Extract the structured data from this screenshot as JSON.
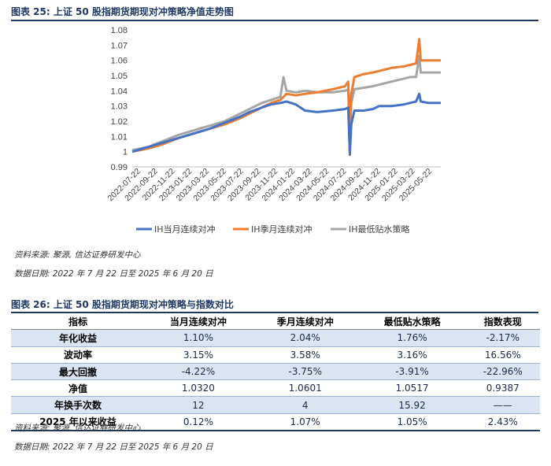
{
  "figure1": {
    "title": "图表 25:  上证 50 股指期货期现对冲策略净值走势图",
    "source": "资料来源:  聚源,  信达证券研发中心",
    "date": "数据日期:  2022 年 7 月 22 日至 2025 年 6 月 20 日"
  },
  "chart_data": {
    "type": "line",
    "x_ticks": [
      "2022-07-22",
      "2022-09-22",
      "2022-11-22",
      "2023-01-22",
      "2023-03-22",
      "2023-05-22",
      "2023-07-22",
      "2023-09-22",
      "2023-11-22",
      "2024-01-22",
      "2024-03-22",
      "2024-05-22",
      "2024-07-22",
      "2024-09-22",
      "2024-11-22",
      "2025-01-22",
      "2025-03-22",
      "2025-05-22"
    ],
    "ylim": [
      0.99,
      1.08
    ],
    "yticks": [
      "0.99",
      "1",
      "1.01",
      "1.02",
      "1.03",
      "1.04",
      "1.05",
      "1.06",
      "1.07",
      "1.08"
    ],
    "legend_position": "bottom",
    "grid": false,
    "series": [
      {
        "name": "IH当月连续对冲",
        "color": "#4472c4",
        "points": [
          [
            0,
            1.0
          ],
          [
            0.05,
            1.003
          ],
          [
            0.1,
            1.006
          ],
          [
            0.15,
            1.009
          ],
          [
            0.2,
            1.012
          ],
          [
            0.25,
            1.015
          ],
          [
            0.3,
            1.019
          ],
          [
            0.35,
            1.023
          ],
          [
            0.38,
            1.026
          ],
          [
            0.42,
            1.029
          ],
          [
            0.45,
            1.031
          ],
          [
            0.48,
            1.032
          ],
          [
            0.5,
            1.033
          ],
          [
            0.53,
            1.031
          ],
          [
            0.56,
            1.027
          ],
          [
            0.6,
            1.026
          ],
          [
            0.65,
            1.027
          ],
          [
            0.69,
            1.028
          ],
          [
            0.7,
            1.029
          ],
          [
            0.705,
            0.998
          ],
          [
            0.71,
            1.018
          ],
          [
            0.72,
            1.027
          ],
          [
            0.75,
            1.027
          ],
          [
            0.78,
            1.028
          ],
          [
            0.8,
            1.03
          ],
          [
            0.84,
            1.03
          ],
          [
            0.88,
            1.031
          ],
          [
            0.9,
            1.032
          ],
          [
            0.92,
            1.033
          ],
          [
            0.93,
            1.038
          ],
          [
            0.935,
            1.033
          ],
          [
            0.96,
            1.032
          ],
          [
            1.0,
            1.032
          ]
        ]
      },
      {
        "name": "IH季月连续对冲",
        "color": "#ed7d31",
        "points": [
          [
            0,
            1.0
          ],
          [
            0.05,
            1.002
          ],
          [
            0.1,
            1.005
          ],
          [
            0.15,
            1.009
          ],
          [
            0.2,
            1.012
          ],
          [
            0.25,
            1.015
          ],
          [
            0.3,
            1.018
          ],
          [
            0.35,
            1.022
          ],
          [
            0.38,
            1.025
          ],
          [
            0.42,
            1.029
          ],
          [
            0.45,
            1.032
          ],
          [
            0.48,
            1.034
          ],
          [
            0.5,
            1.038
          ],
          [
            0.53,
            1.037
          ],
          [
            0.56,
            1.038
          ],
          [
            0.6,
            1.039
          ],
          [
            0.65,
            1.041
          ],
          [
            0.69,
            1.043
          ],
          [
            0.7,
            1.046
          ],
          [
            0.705,
            1.017
          ],
          [
            0.71,
            1.038
          ],
          [
            0.72,
            1.049
          ],
          [
            0.75,
            1.051
          ],
          [
            0.78,
            1.052
          ],
          [
            0.8,
            1.053
          ],
          [
            0.84,
            1.055
          ],
          [
            0.88,
            1.056
          ],
          [
            0.9,
            1.057
          ],
          [
            0.92,
            1.058
          ],
          [
            0.93,
            1.074
          ],
          [
            0.935,
            1.06
          ],
          [
            0.96,
            1.06
          ],
          [
            1.0,
            1.06
          ]
        ]
      },
      {
        "name": "IH最低贴水策略",
        "color": "#a5a5a5",
        "points": [
          [
            0,
            1.001
          ],
          [
            0.05,
            1.003
          ],
          [
            0.1,
            1.007
          ],
          [
            0.15,
            1.011
          ],
          [
            0.2,
            1.014
          ],
          [
            0.25,
            1.017
          ],
          [
            0.3,
            1.02
          ],
          [
            0.35,
            1.025
          ],
          [
            0.38,
            1.028
          ],
          [
            0.42,
            1.032
          ],
          [
            0.45,
            1.034
          ],
          [
            0.48,
            1.036
          ],
          [
            0.49,
            1.049
          ],
          [
            0.5,
            1.04
          ],
          [
            0.53,
            1.039
          ],
          [
            0.56,
            1.04
          ],
          [
            0.6,
            1.039
          ],
          [
            0.65,
            1.039
          ],
          [
            0.69,
            1.04
          ],
          [
            0.7,
            1.041
          ],
          [
            0.705,
            1.008
          ],
          [
            0.71,
            1.032
          ],
          [
            0.72,
            1.041
          ],
          [
            0.75,
            1.042
          ],
          [
            0.78,
            1.043
          ],
          [
            0.8,
            1.044
          ],
          [
            0.84,
            1.046
          ],
          [
            0.88,
            1.048
          ],
          [
            0.9,
            1.049
          ],
          [
            0.92,
            1.049
          ],
          [
            0.93,
            1.063
          ],
          [
            0.935,
            1.052
          ],
          [
            0.96,
            1.052
          ],
          [
            1.0,
            1.052
          ]
        ]
      }
    ]
  },
  "figure2": {
    "title": "图表 26:  上证 50 股指期货期现对冲策略与指数对比",
    "headers": [
      "指标",
      "当月连续对冲",
      "季月连续对冲",
      "最低贴水策略",
      "指数表现"
    ],
    "rows": [
      [
        "年化收益",
        "1.10%",
        "2.04%",
        "1.76%",
        "-2.17%"
      ],
      [
        "波动率",
        "3.15%",
        "3.58%",
        "3.16%",
        "16.56%"
      ],
      [
        "最大回撤",
        "-4.22%",
        "-3.75%",
        "-3.91%",
        "-22.96%"
      ],
      [
        "净值",
        "1.0320",
        "1.0601",
        "1.0517",
        "0.9387"
      ],
      [
        "年换手次数",
        "12",
        "4",
        "15.92",
        "——"
      ],
      [
        "2025 年以来收益",
        "0.12%",
        "1.07%",
        "1.05%",
        "2.43%"
      ]
    ],
    "source": "资料来源:  聚源,  信达证券研发中心",
    "date": "数据日期:  2022 年 7 月 22 日至 2025 年 6 月 20 日"
  }
}
